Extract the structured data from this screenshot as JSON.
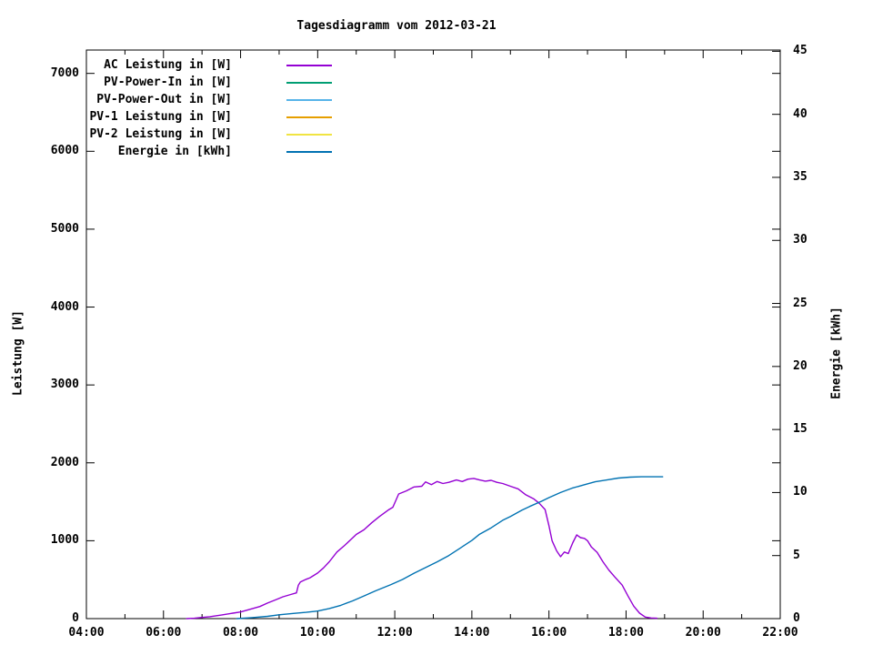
{
  "title": "Tagesdiagramm vom 2012-03-21",
  "axes": {
    "x": {
      "major_ticks": [
        4,
        6,
        8,
        10,
        12,
        14,
        16,
        18,
        20,
        22
      ],
      "major_labels": [
        "04:00",
        "06:00",
        "08:00",
        "10:00",
        "12:00",
        "14:00",
        "16:00",
        "18:00",
        "20:00",
        "22:00"
      ],
      "minor_ticks": [
        5,
        7,
        9,
        11,
        13,
        15,
        17,
        19,
        21
      ]
    },
    "y_left": {
      "label": "Leistung [W]",
      "ticks": [
        0,
        1000,
        2000,
        3000,
        4000,
        5000,
        6000,
        7000
      ],
      "tick_labels": [
        "0",
        "1000",
        "2000",
        "3000",
        "4000",
        "5000",
        "6000",
        "7000"
      ]
    },
    "y_right": {
      "label": "Energie [kWh]",
      "ticks": [
        0,
        5,
        10,
        15,
        20,
        25,
        30,
        35,
        40,
        45
      ],
      "tick_labels": [
        "0",
        "5",
        "10",
        "15",
        "20",
        "25",
        "30",
        "35",
        "40",
        "45"
      ]
    }
  },
  "legend": [
    {
      "label": "AC Leistung in [W]",
      "color": "#9400D3"
    },
    {
      "label": "PV-Power-In in [W]",
      "color": "#009E73"
    },
    {
      "label": "PV-Power-Out in [W]",
      "color": "#56B4E9"
    },
    {
      "label": "PV-1 Leistung in [W]",
      "color": "#E69F00"
    },
    {
      "label": "PV-2 Leistung in [W]",
      "color": "#F0E442"
    },
    {
      "label": "Energie in [kWh]",
      "color": "#0072B2"
    }
  ],
  "chart_data": {
    "type": "line",
    "title": "Tagesdiagramm vom 2012-03-21",
    "xlabel": "",
    "x_unit": "time of day (decimal hours)",
    "x_range": [
      4,
      22
    ],
    "y_left_label": "Leistung [W]",
    "y_left_range": [
      0,
      7300
    ],
    "y_right_label": "Energie [kWh]",
    "y_right_range": [
      0,
      45.1
    ],
    "grid": false,
    "legend_position": "top-left-inside",
    "series": [
      {
        "id": "ac",
        "name": "AC Leistung in [W]",
        "color": "#9400D3",
        "axis": "left",
        "points": [
          [
            6.6,
            0
          ],
          [
            6.8,
            5
          ],
          [
            7.0,
            15
          ],
          [
            7.2,
            25
          ],
          [
            7.5,
            45
          ],
          [
            7.8,
            70
          ],
          [
            8.0,
            85
          ],
          [
            8.25,
            120
          ],
          [
            8.5,
            155
          ],
          [
            8.7,
            200
          ],
          [
            8.9,
            240
          ],
          [
            9.1,
            280
          ],
          [
            9.3,
            310
          ],
          [
            9.45,
            330
          ],
          [
            9.5,
            430
          ],
          [
            9.55,
            470
          ],
          [
            9.7,
            505
          ],
          [
            9.8,
            525
          ],
          [
            10.0,
            585
          ],
          [
            10.15,
            650
          ],
          [
            10.3,
            730
          ],
          [
            10.5,
            855
          ],
          [
            10.7,
            940
          ],
          [
            10.85,
            1010
          ],
          [
            11.0,
            1080
          ],
          [
            11.2,
            1140
          ],
          [
            11.4,
            1230
          ],
          [
            11.6,
            1310
          ],
          [
            11.85,
            1400
          ],
          [
            11.95,
            1430
          ],
          [
            12.1,
            1600
          ],
          [
            12.3,
            1640
          ],
          [
            12.5,
            1690
          ],
          [
            12.7,
            1700
          ],
          [
            12.8,
            1755
          ],
          [
            12.95,
            1720
          ],
          [
            13.1,
            1760
          ],
          [
            13.25,
            1735
          ],
          [
            13.4,
            1750
          ],
          [
            13.6,
            1780
          ],
          [
            13.75,
            1760
          ],
          [
            13.9,
            1790
          ],
          [
            14.05,
            1800
          ],
          [
            14.2,
            1780
          ],
          [
            14.35,
            1765
          ],
          [
            14.5,
            1775
          ],
          [
            14.65,
            1750
          ],
          [
            14.8,
            1735
          ],
          [
            15.0,
            1700
          ],
          [
            15.2,
            1665
          ],
          [
            15.4,
            1590
          ],
          [
            15.6,
            1540
          ],
          [
            15.75,
            1480
          ],
          [
            15.9,
            1400
          ],
          [
            16.0,
            1190
          ],
          [
            16.08,
            1000
          ],
          [
            16.2,
            870
          ],
          [
            16.3,
            795
          ],
          [
            16.4,
            855
          ],
          [
            16.5,
            835
          ],
          [
            16.62,
            975
          ],
          [
            16.72,
            1075
          ],
          [
            16.82,
            1040
          ],
          [
            16.92,
            1030
          ],
          [
            17.0,
            1000
          ],
          [
            17.1,
            920
          ],
          [
            17.25,
            850
          ],
          [
            17.4,
            730
          ],
          [
            17.55,
            625
          ],
          [
            17.7,
            540
          ],
          [
            17.9,
            430
          ],
          [
            18.05,
            290
          ],
          [
            18.2,
            160
          ],
          [
            18.35,
            70
          ],
          [
            18.5,
            20
          ],
          [
            18.65,
            8
          ],
          [
            18.8,
            5
          ]
        ]
      },
      {
        "id": "pv_in",
        "name": "PV-Power-In in [W]",
        "color": "#009E73",
        "axis": "left",
        "points": []
      },
      {
        "id": "pv_out",
        "name": "PV-Power-Out in [W]",
        "color": "#56B4E9",
        "axis": "left",
        "points": []
      },
      {
        "id": "pv1",
        "name": "PV-1 Leistung in [W]",
        "color": "#E69F00",
        "axis": "left",
        "points": []
      },
      {
        "id": "pv2",
        "name": "PV-2 Leistung in [W]",
        "color": "#F0E442",
        "axis": "left",
        "points": []
      },
      {
        "id": "energy",
        "name": "Energie in [kWh]",
        "color": "#0072B2",
        "axis": "right",
        "points": [
          [
            7.9,
            0
          ],
          [
            8.3,
            0.08
          ],
          [
            8.7,
            0.18
          ],
          [
            9.0,
            0.3
          ],
          [
            9.4,
            0.42
          ],
          [
            9.7,
            0.5
          ],
          [
            10.0,
            0.6
          ],
          [
            10.3,
            0.8
          ],
          [
            10.6,
            1.05
          ],
          [
            10.9,
            1.4
          ],
          [
            11.2,
            1.8
          ],
          [
            11.5,
            2.2
          ],
          [
            11.9,
            2.7
          ],
          [
            12.2,
            3.1
          ],
          [
            12.5,
            3.6
          ],
          [
            12.8,
            4.05
          ],
          [
            13.1,
            4.5
          ],
          [
            13.4,
            5.0
          ],
          [
            13.7,
            5.6
          ],
          [
            14.0,
            6.2
          ],
          [
            14.2,
            6.7
          ],
          [
            14.5,
            7.2
          ],
          [
            14.8,
            7.8
          ],
          [
            15.0,
            8.1
          ],
          [
            15.3,
            8.6
          ],
          [
            15.5,
            8.9
          ],
          [
            15.8,
            9.3
          ],
          [
            16.0,
            9.6
          ],
          [
            16.3,
            10.0
          ],
          [
            16.6,
            10.35
          ],
          [
            16.9,
            10.6
          ],
          [
            17.2,
            10.85
          ],
          [
            17.5,
            11.0
          ],
          [
            17.8,
            11.15
          ],
          [
            18.1,
            11.22
          ],
          [
            18.4,
            11.25
          ],
          [
            18.95,
            11.25
          ]
        ]
      }
    ]
  }
}
